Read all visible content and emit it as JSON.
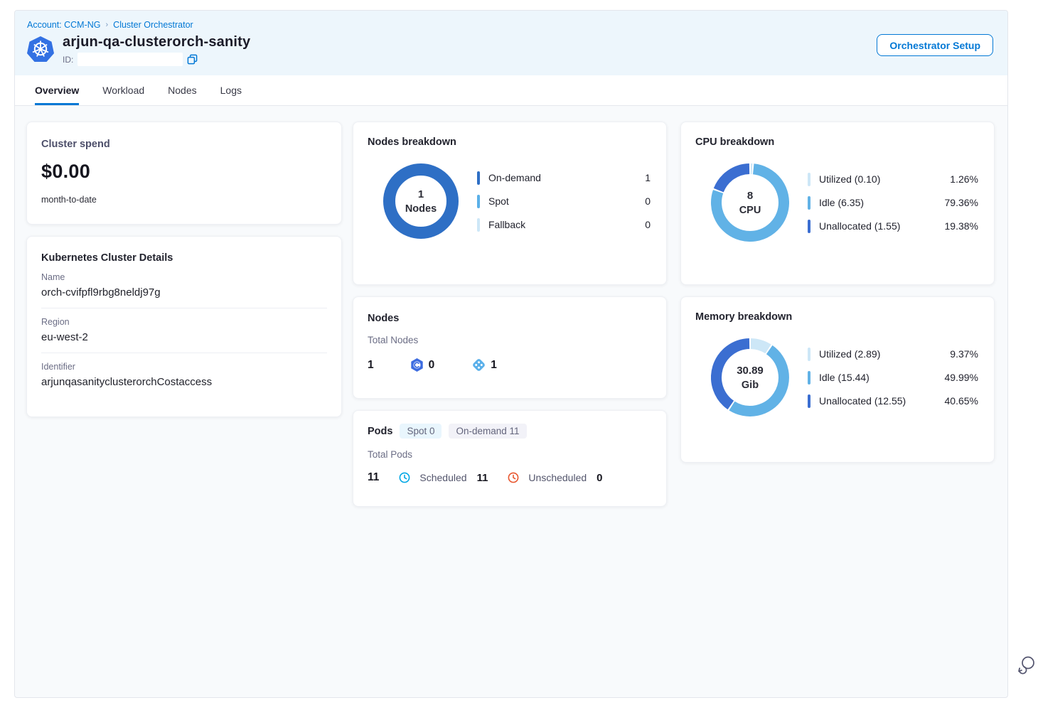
{
  "header": {
    "breadcrumb": {
      "account": "Account: CCM-NG",
      "separator": "›",
      "section": "Cluster Orchestrator"
    },
    "title": "arjun-qa-clusterorch-sanity",
    "id_label": "ID:",
    "setup_button": "Orchestrator Setup"
  },
  "tabs": [
    {
      "label": "Overview"
    },
    {
      "label": "Workload"
    },
    {
      "label": "Nodes"
    },
    {
      "label": "Logs"
    }
  ],
  "cluster_spend": {
    "title": "Cluster spend",
    "amount": "$0.00",
    "period": "month-to-date"
  },
  "cluster_details": {
    "title": "Kubernetes Cluster Details",
    "fields": [
      {
        "label": "Name",
        "value": "orch-cvifpfl9rbg8neldj97g"
      },
      {
        "label": "Region",
        "value": "eu-west-2"
      },
      {
        "label": "Identifier",
        "value": "arjunqasanityclusterorchCostaccess"
      }
    ]
  },
  "nodes_breakdown": {
    "title": "Nodes breakdown",
    "center_value": "1",
    "center_label": "Nodes",
    "segments": [
      {
        "label": "On-demand",
        "display": "1",
        "pct": 100,
        "color": "#2e6fc5"
      },
      {
        "label": "Spot",
        "display": "0",
        "pct": 0,
        "color": "#5bb0e8"
      },
      {
        "label": "Fallback",
        "display": "0",
        "pct": 0,
        "color": "#cde7f7"
      }
    ]
  },
  "cpu_breakdown": {
    "title": "CPU breakdown",
    "center_value": "8",
    "center_label": "CPU",
    "segments": [
      {
        "label": "Utilized (0.10)",
        "display": "1.26%",
        "pct": 1.26,
        "color": "#cde7f7"
      },
      {
        "label": "Idle (6.35)",
        "display": "79.36%",
        "pct": 79.36,
        "color": "#61b2e6"
      },
      {
        "label": "Unallocated (1.55)",
        "display": "19.38%",
        "pct": 19.38,
        "color": "#3b6ed1"
      }
    ]
  },
  "memory_breakdown": {
    "title": "Memory breakdown",
    "center_value": "30.89",
    "center_label": "Gib",
    "segments": [
      {
        "label": "Utilized (2.89)",
        "display": "9.37%",
        "pct": 9.37,
        "color": "#cde7f7"
      },
      {
        "label": "Idle (15.44)",
        "display": "49.99%",
        "pct": 49.99,
        "color": "#61b2e6"
      },
      {
        "label": "Unallocated (12.55)",
        "display": "40.65%",
        "pct": 40.65,
        "color": "#3b6ed1"
      }
    ]
  },
  "nodes_card": {
    "title": "Nodes",
    "subtitle": "Total Nodes",
    "total": "1",
    "spot_count": "0",
    "ondemand_count": "1"
  },
  "pods_card": {
    "title": "Pods",
    "spot_pill": "Spot 0",
    "ondemand_pill": "On-demand 11",
    "subtitle": "Total Pods",
    "total": "11",
    "scheduled_label": "Scheduled",
    "scheduled_value": "11",
    "unscheduled_label": "Unscheduled",
    "unscheduled_value": "0"
  },
  "colors": {
    "primary": "#0278d5",
    "header_bg": "#edf6fc",
    "content_bg": "#f8fafc"
  },
  "chart_data": [
    {
      "type": "pie",
      "title": "Nodes breakdown",
      "center": "1 Nodes",
      "categories": [
        "On-demand",
        "Spot",
        "Fallback"
      ],
      "values": [
        1,
        0,
        0
      ],
      "legend_position": "right"
    },
    {
      "type": "pie",
      "title": "CPU breakdown",
      "center": "8 CPU",
      "categories": [
        "Utilized (0.10)",
        "Idle (6.35)",
        "Unallocated (1.55)"
      ],
      "values": [
        1.26,
        79.36,
        19.38
      ],
      "legend_position": "right"
    },
    {
      "type": "pie",
      "title": "Memory breakdown",
      "center": "30.89 Gib",
      "categories": [
        "Utilized (2.89)",
        "Idle (15.44)",
        "Unallocated (12.55)"
      ],
      "values": [
        9.37,
        49.99,
        40.65
      ],
      "legend_position": "right"
    }
  ]
}
